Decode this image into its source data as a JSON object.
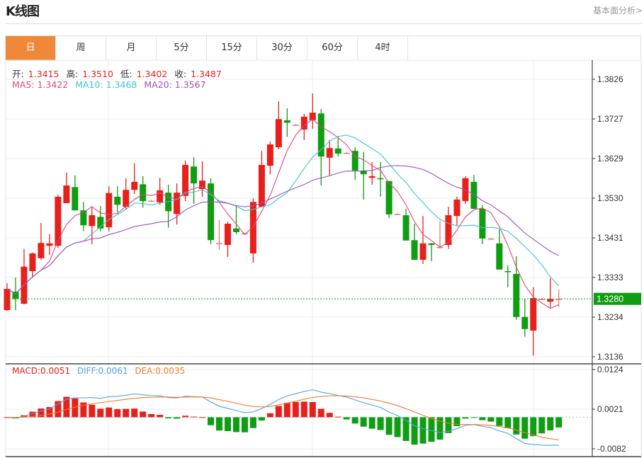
{
  "header": {
    "title": "K线图",
    "link": "基本面分析>"
  },
  "tabs": [
    {
      "label": "日",
      "active": true
    },
    {
      "label": "周"
    },
    {
      "label": "月"
    },
    {
      "label": "5分"
    },
    {
      "label": "15分"
    },
    {
      "label": "30分"
    },
    {
      "label": "60分"
    },
    {
      "label": "4时"
    }
  ],
  "ohlc_legend": {
    "open_label": "开:",
    "open": "1.3415",
    "high_label": "高:",
    "high": "1.3510",
    "low_label": "低:",
    "low": "1.3402",
    "close_label": "收:",
    "close": "1.3487"
  },
  "ma_legend": {
    "ma5": "MA5: 1.3422",
    "ma10": "MA10: 1.3468",
    "ma20": "MA20: 1.3567"
  },
  "macd_legend": {
    "macd": "MACD:0.0051",
    "diff": "DIFF:0.0061",
    "dea": "DEA:0.0035"
  },
  "colors": {
    "up": "#e8201b",
    "down": "#0f9d12",
    "ma5": "#e2457e",
    "ma10": "#3ec3cf",
    "ma20": "#a250b8",
    "diff": "#4ea6e0",
    "dea": "#f07d2a",
    "accent": "#f0883a",
    "price_tag": "#0f9d12"
  },
  "chart_data": [
    {
      "type": "candlestick",
      "title": "",
      "y_ticks": [
        "1.3826",
        "1.3727",
        "1.3629",
        "1.3530",
        "1.3431",
        "1.3333",
        "1.3234",
        "1.3136"
      ],
      "ylim": [
        1.3136,
        1.3826
      ],
      "last_price": "1.3280",
      "grid": true,
      "moving_averages": [
        5,
        10,
        20
      ],
      "candles": [
        [
          1.3252,
          1.3319,
          1.325,
          1.3305
        ],
        [
          1.3298,
          1.3333,
          1.3252,
          1.328
        ],
        [
          1.3268,
          1.3404,
          1.3266,
          1.336
        ],
        [
          1.3349,
          1.3395,
          1.3333,
          1.3393
        ],
        [
          1.3381,
          1.3469,
          1.3377,
          1.3419
        ],
        [
          1.3412,
          1.3441,
          1.339,
          1.3418
        ],
        [
          1.3412,
          1.3539,
          1.3407,
          1.3534
        ],
        [
          1.3518,
          1.3594,
          1.3518,
          1.3562
        ],
        [
          1.3558,
          1.3587,
          1.35,
          1.35
        ],
        [
          1.35,
          1.3521,
          1.3449,
          1.3463
        ],
        [
          1.3461,
          1.3509,
          1.3416,
          1.3488
        ],
        [
          1.3484,
          1.3511,
          1.3448,
          1.3455
        ],
        [
          1.3458,
          1.356,
          1.3448,
          1.3543
        ],
        [
          1.3534,
          1.356,
          1.3495,
          1.3514
        ],
        [
          1.3509,
          1.358,
          1.3502,
          1.3551
        ],
        [
          1.3551,
          1.3617,
          1.3541,
          1.3571
        ],
        [
          1.3565,
          1.3585,
          1.3507,
          1.3523
        ],
        [
          1.3524,
          1.3526,
          1.3522,
          1.3524
        ],
        [
          1.352,
          1.3581,
          1.3514,
          1.355
        ],
        [
          1.3544,
          1.3564,
          1.3457,
          1.3498
        ],
        [
          1.3491,
          1.3567,
          1.3465,
          1.3544
        ],
        [
          1.3536,
          1.3624,
          1.3523,
          1.3613
        ],
        [
          1.3609,
          1.3632,
          1.3516,
          1.3567
        ],
        [
          1.3553,
          1.3622,
          1.3534,
          1.3574
        ],
        [
          1.3567,
          1.358,
          1.3416,
          1.3426
        ],
        [
          1.3419,
          1.3476,
          1.3402,
          1.3419
        ],
        [
          1.3414,
          1.3471,
          1.3384,
          1.3467
        ],
        [
          1.3455,
          1.3511,
          1.3441,
          1.3446
        ],
        [
          1.3443,
          1.3445,
          1.3441,
          1.3443
        ],
        [
          1.3393,
          1.353,
          1.337,
          1.3521
        ],
        [
          1.3509,
          1.3648,
          1.3509,
          1.3613
        ],
        [
          1.3611,
          1.3671,
          1.359,
          1.3664
        ],
        [
          1.3657,
          1.3771,
          1.3652,
          1.3727
        ],
        [
          1.3724,
          1.3754,
          1.3683,
          1.3718
        ],
        [
          1.3713,
          1.3715,
          1.3711,
          1.3713
        ],
        [
          1.3701,
          1.374,
          1.3675,
          1.3733
        ],
        [
          1.3724,
          1.3791,
          1.3703,
          1.3743
        ],
        [
          1.3741,
          1.3752,
          1.3562,
          1.3634
        ],
        [
          1.3631,
          1.3675,
          1.3587,
          1.3655
        ],
        [
          1.3654,
          1.3683,
          1.3634,
          1.3641
        ],
        [
          1.3643,
          1.3645,
          1.3641,
          1.3643
        ],
        [
          1.3648,
          1.3657,
          1.3576,
          1.3599
        ],
        [
          1.3599,
          1.3646,
          1.3527,
          1.359
        ],
        [
          1.3581,
          1.362,
          1.3564,
          1.3585
        ],
        [
          1.358,
          1.362,
          1.3534,
          1.3578
        ],
        [
          1.3573,
          1.3573,
          1.3481,
          1.349
        ],
        [
          1.3491,
          1.3493,
          1.3489,
          1.3491
        ],
        [
          1.3488,
          1.3504,
          1.3425,
          1.3425
        ],
        [
          1.3426,
          1.3467,
          1.3377,
          1.3377
        ],
        [
          1.3377,
          1.3486,
          1.3367,
          1.3418
        ],
        [
          1.3418,
          1.3419,
          1.3374,
          1.3414
        ],
        [
          1.3409,
          1.3474,
          1.3405,
          1.3409
        ],
        [
          1.3414,
          1.3509,
          1.3404,
          1.3488
        ],
        [
          1.3486,
          1.3534,
          1.3461,
          1.3527
        ],
        [
          1.3523,
          1.3585,
          1.3516,
          1.358
        ],
        [
          1.3571,
          1.3588,
          1.3504,
          1.3504
        ],
        [
          1.3504,
          1.3513,
          1.3416,
          1.343
        ],
        [
          1.343,
          1.3432,
          1.3428,
          1.343
        ],
        [
          1.3418,
          1.3453,
          1.3353,
          1.3353
        ],
        [
          1.3349,
          1.3363,
          1.3309,
          1.3347
        ],
        [
          1.3342,
          1.3386,
          1.3228,
          1.3235
        ],
        [
          1.3235,
          1.328,
          1.3186,
          1.3205
        ],
        [
          1.3201,
          1.3309,
          1.3139,
          1.3282
        ],
        [
          1.328,
          1.3282,
          1.3278,
          1.328
        ],
        [
          1.3273,
          1.3331,
          1.3258,
          1.328
        ],
        [
          1.328,
          1.3303,
          1.3261,
          1.328
        ]
      ]
    },
    {
      "type": "bar+line",
      "title": "",
      "indicator": "MACD",
      "y_ticks": [
        "0.0124",
        "0.0021",
        "-0.0082"
      ],
      "ylim": [
        -0.0082,
        0.0124
      ]
    }
  ]
}
